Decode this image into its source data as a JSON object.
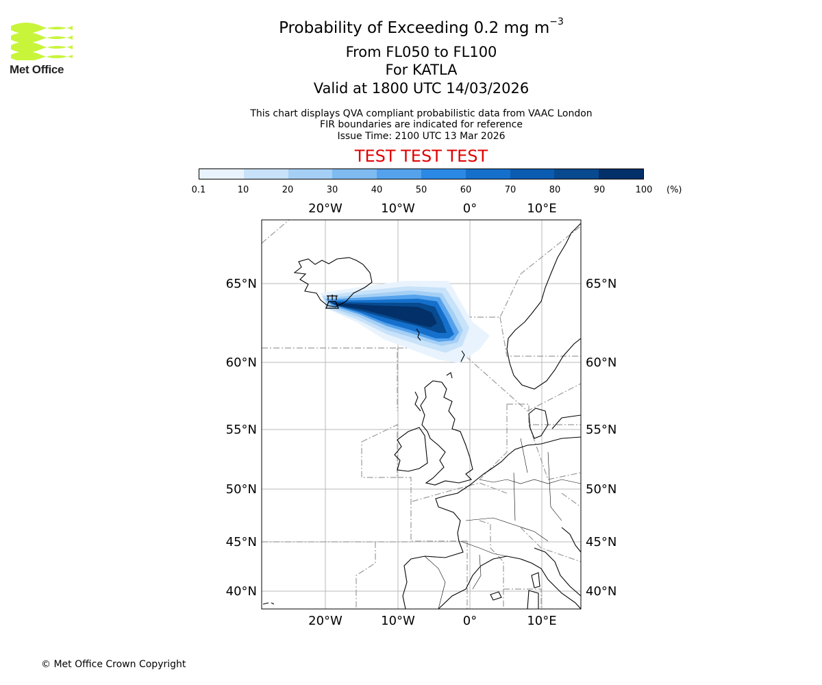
{
  "logo": {
    "text": "Met Office",
    "color": "#c8f53a"
  },
  "title": {
    "main": "Probability of Exceeding 0.2 mg m",
    "superscript": "−3",
    "level": "From FL050 to FL100",
    "volcano": "For KATLA",
    "valid": "Valid at 1800 UTC 14/03/2026"
  },
  "notes": {
    "line1": "This chart displays QVA compliant probabilistic data from VAAC London",
    "line2": "FIR boundaries are indicated for reference",
    "line3": "Issue Time: 2100 UTC 13 Mar 2026"
  },
  "test_banner": "TEST TEST TEST",
  "colorbar": {
    "ticks": [
      "0.1",
      "10",
      "20",
      "30",
      "40",
      "50",
      "60",
      "70",
      "80",
      "90",
      "100"
    ],
    "unit": "(%)",
    "colors": [
      "#e8f3fd",
      "#c7e2f9",
      "#a5cff5",
      "#7fbaf0",
      "#55a2ec",
      "#2b88e4",
      "#1570cc",
      "#0b5bb0",
      "#074a8f",
      "#033068"
    ]
  },
  "map": {
    "lon_labels": [
      "20°W",
      "10°W",
      "0°",
      "10°E"
    ],
    "lat_labels": [
      "65°N",
      "60°N",
      "55°N",
      "50°N",
      "45°N",
      "40°N"
    ],
    "volcano_icon": "volcano-icon"
  },
  "footer": {
    "copyright": "© Met Office Crown Copyright"
  }
}
